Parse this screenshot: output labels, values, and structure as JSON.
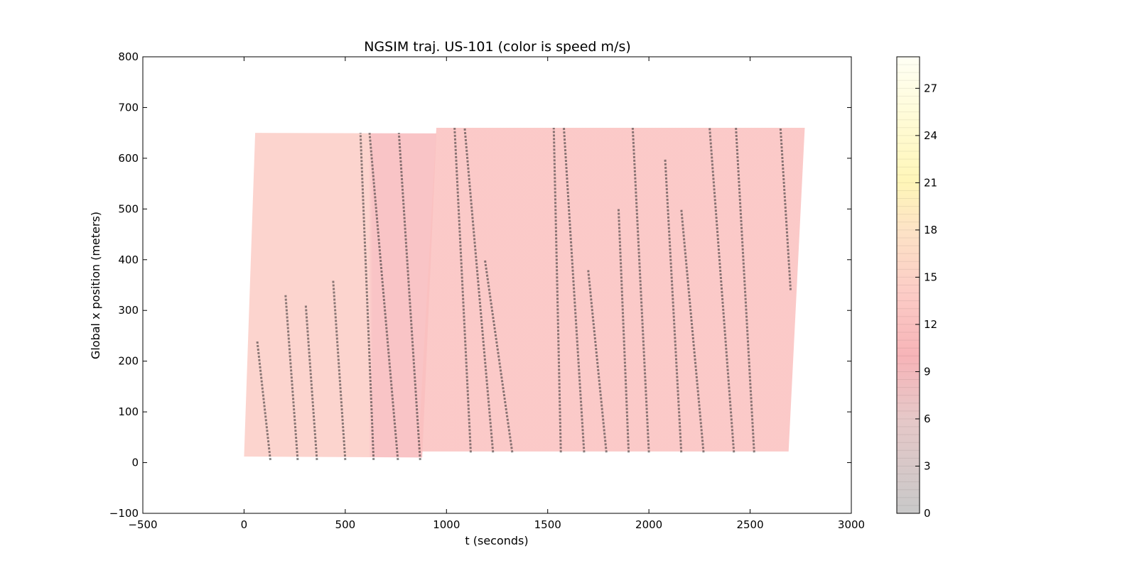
{
  "chart_data": {
    "type": "heatmap",
    "title": "NGSIM traj. US-101 (color is speed m/s)",
    "xlabel": "t (seconds)",
    "ylabel": "Global x position (meters)",
    "xlim": [
      -500,
      3000
    ],
    "ylim": [
      -100,
      800
    ],
    "x_ticks": [
      -500,
      0,
      500,
      1000,
      1500,
      2000,
      2500,
      3000
    ],
    "x_tick_labels": [
      "−500",
      "0",
      "500",
      "1000",
      "1500",
      "2000",
      "2500",
      "3000"
    ],
    "y_ticks": [
      -100,
      0,
      100,
      200,
      300,
      400,
      500,
      600,
      700,
      800
    ],
    "y_tick_labels": [
      "−100",
      "0",
      "100",
      "200",
      "300",
      "400",
      "500",
      "600",
      "700",
      "800"
    ],
    "colorbar": {
      "label": "speed m/s",
      "range": [
        0,
        29
      ],
      "ticks": [
        0,
        3,
        6,
        9,
        12,
        15,
        18,
        21,
        24,
        27
      ],
      "tick_labels": [
        "0",
        "3",
        "6",
        "9",
        "12",
        "15",
        "18",
        "21",
        "24",
        "27"
      ],
      "stops": [
        {
          "v": 0,
          "color": "#c9c9c9"
        },
        {
          "v": 6,
          "color": "#e6c8c8"
        },
        {
          "v": 10,
          "color": "#f7b4b8"
        },
        {
          "v": 14,
          "color": "#fcccc6"
        },
        {
          "v": 18,
          "color": "#fde3c6"
        },
        {
          "v": 21,
          "color": "#fff6b8"
        },
        {
          "v": 25,
          "color": "#fffbd6"
        },
        {
          "v": 29,
          "color": "#fffff4"
        }
      ]
    },
    "trajectory_regions": [
      {
        "name": "period-1",
        "corners": [
          [
            0,
            12
          ],
          [
            880,
            10
          ],
          [
            55,
            650
          ],
          [
            950,
            649
          ]
        ],
        "start_speed": 14,
        "late_speed": 11,
        "late_from_t": 570
      },
      {
        "name": "period-2",
        "corners": [
          [
            860,
            22
          ],
          [
            2690,
            22
          ],
          [
            950,
            660
          ],
          [
            2770,
            660
          ]
        ],
        "start_speed": 12,
        "late_speed": 12,
        "late_from_t": 950
      }
    ],
    "congestion_waves": [
      [
        130,
        5,
        65,
        240
      ],
      [
        265,
        5,
        205,
        330
      ],
      [
        360,
        5,
        305,
        310
      ],
      [
        500,
        5,
        440,
        360
      ],
      [
        640,
        5,
        575,
        650
      ],
      [
        760,
        5,
        620,
        650
      ],
      [
        870,
        5,
        765,
        650
      ],
      [
        1120,
        20,
        1040,
        660
      ],
      [
        1230,
        20,
        1090,
        660
      ],
      [
        1325,
        20,
        1190,
        400
      ],
      [
        1565,
        20,
        1530,
        660
      ],
      [
        1680,
        20,
        1580,
        660
      ],
      [
        1790,
        20,
        1700,
        380
      ],
      [
        1900,
        20,
        1850,
        500
      ],
      [
        2000,
        20,
        1920,
        660
      ],
      [
        2160,
        20,
        2080,
        600
      ],
      [
        2270,
        20,
        2160,
        500
      ],
      [
        2420,
        20,
        2300,
        660
      ],
      [
        2520,
        20,
        2430,
        660
      ],
      [
        2700,
        340,
        2650,
        660
      ]
    ]
  }
}
